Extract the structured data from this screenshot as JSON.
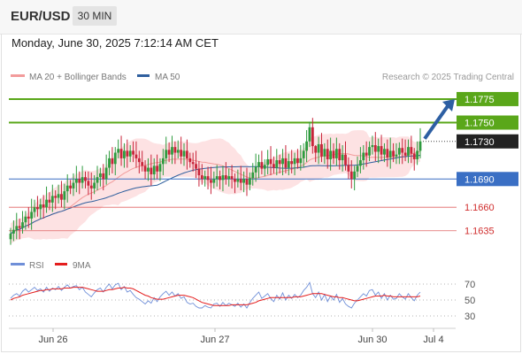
{
  "header": {
    "symbol": "EUR/USD",
    "timeframe": "30 MIN",
    "datetime": "Monday, June 30, 2025 7:12:14 AM CET"
  },
  "legend": {
    "ma20_label": "MA 20 + Bollinger Bands",
    "ma50_label": "MA 50",
    "credit": "Research © 2025 Trading Central",
    "ma20_color": "#f29b9b",
    "ma50_color": "#2f5f9e",
    "rsi_label": "RSI",
    "rsi_ma_label": "9MA",
    "rsi_color": "#6f8fd8",
    "rsi_ma_color": "#e41e1e"
  },
  "colors": {
    "up_candle": "#2e9b3e",
    "down_candle": "#c8243a",
    "resistance": "#5aa71a",
    "pivot": "#3a6fc4",
    "support": "#e06464",
    "bollinger_fill": "#fde2e3",
    "arrow": "#2d5fa3"
  },
  "chart_data": [
    {
      "type": "candlestick",
      "title": "EUR/USD",
      "timeframe": "30 MIN",
      "x_tick_labels": [
        "Jun 26",
        "Jun 27",
        "Jun 30",
        "Jul 4"
      ],
      "ylim": [
        1.1615,
        1.179
      ],
      "levels": [
        {
          "label": "1.1775",
          "value": 1.1775,
          "kind": "resistance"
        },
        {
          "label": "1.1750",
          "value": 1.175,
          "kind": "resistance"
        },
        {
          "label": "1.1730",
          "value": 1.173,
          "kind": "current"
        },
        {
          "label": "1.1690",
          "value": 1.169,
          "kind": "pivot"
        },
        {
          "label": "1.1660",
          "value": 1.166,
          "kind": "support"
        },
        {
          "label": "1.1635",
          "value": 1.1635,
          "kind": "support"
        }
      ],
      "forecast_arrow": {
        "from": 1.173,
        "to": 1.1775
      },
      "close": [
        1.1632,
        1.1636,
        1.164,
        1.1638,
        1.1644,
        1.165,
        1.1648,
        1.1655,
        1.166,
        1.1658,
        1.1663,
        1.166,
        1.1668,
        1.1665,
        1.1672,
        1.167,
        1.1674,
        1.1668,
        1.1677,
        1.1683,
        1.168,
        1.1686,
        1.169,
        1.1686,
        1.1692,
        1.1688,
        1.1683,
        1.168,
        1.1686,
        1.1692,
        1.1696,
        1.169,
        1.1702,
        1.1712,
        1.1706,
        1.1718,
        1.1722,
        1.1712,
        1.172,
        1.1714,
        1.172,
        1.1716,
        1.1712,
        1.1708,
        1.1704,
        1.1698,
        1.1702,
        1.1695,
        1.1704,
        1.1698,
        1.1706,
        1.1712,
        1.1721,
        1.1716,
        1.1724,
        1.1718,
        1.1721,
        1.1714,
        1.172,
        1.1712,
        1.1708,
        1.1706,
        1.1701,
        1.1694,
        1.169,
        1.1693,
        1.1689,
        1.1686,
        1.169,
        1.1693,
        1.1689,
        1.1694,
        1.169,
        1.1693,
        1.169,
        1.1687,
        1.169,
        1.1686,
        1.169,
        1.1684,
        1.1691,
        1.1697,
        1.1703,
        1.1708,
        1.1701,
        1.1705,
        1.1711,
        1.1706,
        1.1702,
        1.171,
        1.1706,
        1.1712,
        1.1702,
        1.1709,
        1.1706,
        1.1712,
        1.1707,
        1.1712,
        1.172,
        1.173,
        1.1745,
        1.1725,
        1.1718,
        1.1727,
        1.1714,
        1.1722,
        1.1711,
        1.172,
        1.1712,
        1.1722,
        1.171,
        1.1716,
        1.1705,
        1.1698,
        1.169,
        1.1698,
        1.1704,
        1.171,
        1.1718,
        1.1715,
        1.1724,
        1.1726,
        1.1719,
        1.1725,
        1.1716,
        1.1722,
        1.1713,
        1.172,
        1.1714,
        1.1716,
        1.1723,
        1.1718,
        1.1715,
        1.1724,
        1.1717,
        1.1711,
        1.172,
        1.173
      ],
      "rsi": {
        "ylim": [
          20,
          80
        ],
        "ticks": [
          "70",
          "50",
          "30"
        ],
        "values": [
          52,
          56,
          58,
          55,
          61,
          64,
          60,
          63,
          66,
          62,
          64,
          60,
          66,
          61,
          65,
          63,
          67,
          62,
          66,
          69,
          65,
          67,
          68,
          63,
          66,
          60,
          57,
          54,
          59,
          63,
          65,
          60,
          66,
          70,
          64,
          69,
          71,
          63,
          67,
          60,
          62,
          57,
          53,
          51,
          48,
          45,
          49,
          46,
          53,
          48,
          54,
          58,
          61,
          56,
          60,
          55,
          58,
          52,
          54,
          47,
          45,
          46,
          42,
          40,
          40,
          43,
          41,
          40,
          45,
          46,
          42,
          47,
          43,
          46,
          44,
          42,
          46,
          41,
          45,
          40,
          47,
          52,
          56,
          60,
          52,
          55,
          58,
          52,
          48,
          56,
          51,
          59,
          50,
          56,
          52,
          57,
          53,
          56,
          62,
          66,
          72,
          58,
          53,
          60,
          50,
          57,
          48,
          55,
          50,
          57,
          47,
          52,
          45,
          42,
          40,
          46,
          50,
          54,
          58,
          55,
          62,
          63,
          56,
          60,
          52,
          58,
          50,
          56,
          51,
          52,
          58,
          54,
          51,
          58,
          53,
          49,
          56,
          60
        ],
        "ma_values": [
          50,
          52,
          53,
          54,
          56,
          57,
          58,
          59,
          60,
          61,
          62,
          62,
          63,
          63,
          64,
          64,
          64,
          64,
          65,
          65,
          65,
          66,
          66,
          66,
          66,
          65,
          64,
          63,
          62,
          61,
          61,
          61,
          62,
          63,
          63,
          64,
          65,
          65,
          66,
          65,
          65,
          64,
          62,
          60,
          58,
          56,
          55,
          53,
          52,
          51,
          51,
          51,
          52,
          53,
          54,
          55,
          56,
          56,
          56,
          55,
          54,
          53,
          51,
          49,
          47,
          46,
          45,
          44,
          43,
          43,
          43,
          43,
          43,
          43,
          44,
          44,
          44,
          44,
          44,
          44,
          45,
          46,
          47,
          49,
          50,
          51,
          52,
          53,
          53,
          53,
          53,
          53,
          53,
          53,
          53,
          54,
          54,
          54,
          55,
          56,
          57,
          58,
          58,
          58,
          58,
          57,
          56,
          55,
          54,
          54,
          53,
          53,
          52,
          51,
          50,
          49,
          49,
          50,
          51,
          52,
          53,
          54,
          55,
          55,
          55,
          56,
          55,
          55,
          54,
          54,
          54,
          54,
          54,
          54,
          54,
          54,
          54,
          55
        ]
      }
    }
  ]
}
